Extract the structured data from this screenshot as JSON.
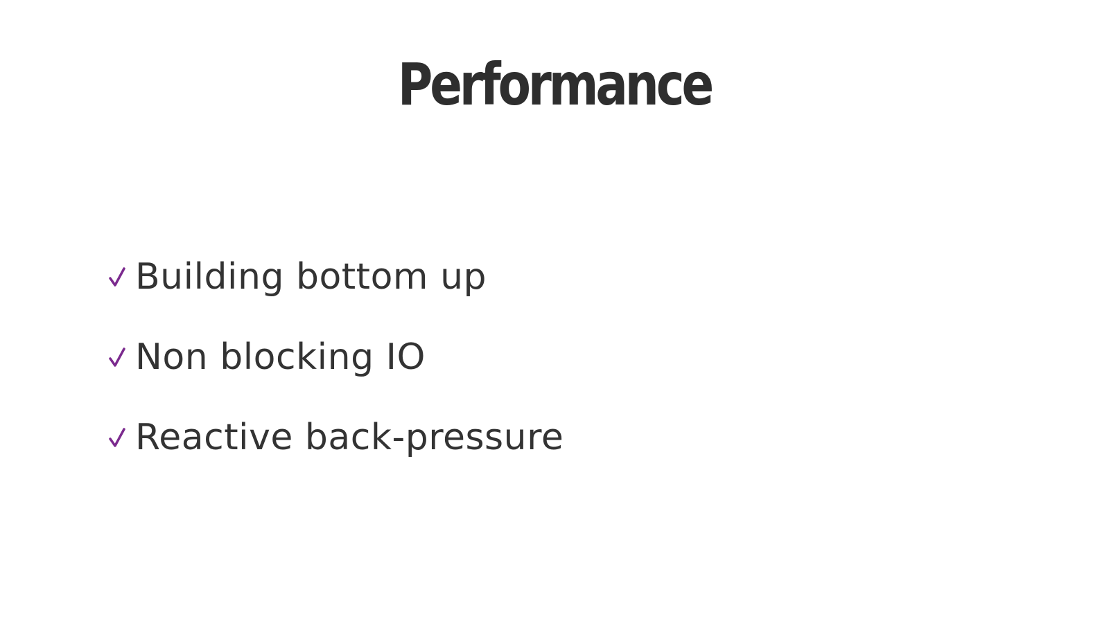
{
  "slide": {
    "title": "Performance",
    "accent_color": "#7b2a8e",
    "text_color": "#333333",
    "bullet_icon": "checkmark-icon",
    "bullets": [
      "Building bottom up",
      "Non blocking IO",
      "Reactive back-pressure"
    ]
  }
}
